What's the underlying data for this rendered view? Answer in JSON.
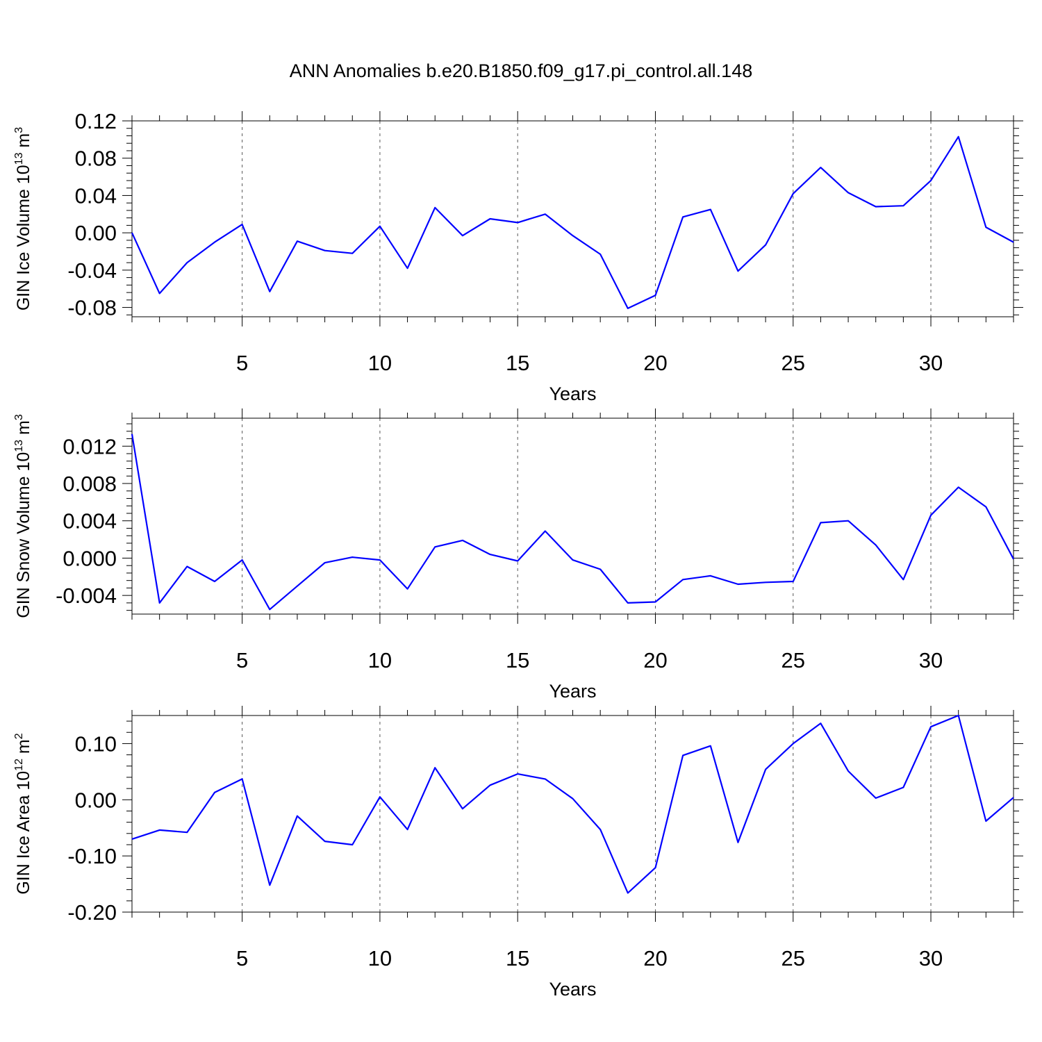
{
  "page_title": "ANN Anomalies b.e20.B1850.f09_g17.pi_control.all.148",
  "colors": {
    "line": "#0000ff",
    "axis": "#000000",
    "grid": "#555555"
  },
  "chart_data": [
    {
      "type": "line",
      "title": "ANN Anomalies b.e20.B1850.f09_g17.pi_control.all.148",
      "ylabel_parts": [
        "GIN Ice Volume 10",
        "13",
        " m",
        "3"
      ],
      "xlabel": "Years",
      "xlim": [
        1,
        33
      ],
      "ylim": [
        -0.09,
        0.12
      ],
      "xticks": [
        5,
        10,
        15,
        20,
        25,
        30
      ],
      "xtick_labels": [
        "5",
        "10",
        "15",
        "20",
        "25",
        "30"
      ],
      "yticks": [
        -0.08,
        -0.04,
        0.0,
        0.04,
        0.08,
        0.12
      ],
      "ytick_labels": [
        "-0.08",
        "-0.04",
        "0.00",
        "0.04",
        "0.08",
        "0.12"
      ],
      "grid": "vertical dashed at major x ticks",
      "x": [
        1,
        2,
        3,
        4,
        5,
        6,
        7,
        8,
        9,
        10,
        11,
        12,
        13,
        14,
        15,
        16,
        17,
        18,
        19,
        20,
        21,
        22,
        23,
        24,
        25,
        26,
        27,
        28,
        29,
        30,
        31,
        32,
        33
      ],
      "series": [
        {
          "values": [
            0.0,
            -0.065,
            -0.032,
            -0.01,
            0.009,
            -0.063,
            -0.009,
            -0.019,
            -0.022,
            0.007,
            -0.038,
            0.027,
            -0.003,
            0.015,
            0.011,
            0.02,
            -0.003,
            -0.023,
            -0.081,
            -0.067,
            0.017,
            0.025,
            -0.041,
            -0.013,
            0.042,
            0.07,
            0.043,
            0.028,
            0.029,
            0.056,
            0.103,
            0.006,
            -0.01
          ]
        }
      ]
    },
    {
      "type": "line",
      "ylabel_parts": [
        "GIN Snow Volume 10",
        "13",
        " m",
        "3"
      ],
      "xlabel": "Years",
      "xlim": [
        1,
        33
      ],
      "ylim": [
        -0.006,
        0.015
      ],
      "xticks": [
        5,
        10,
        15,
        20,
        25,
        30
      ],
      "xtick_labels": [
        "5",
        "10",
        "15",
        "20",
        "25",
        "30"
      ],
      "yticks": [
        -0.004,
        0.0,
        0.004,
        0.008,
        0.012
      ],
      "ytick_labels": [
        "-0.004",
        "0.000",
        "0.004",
        "0.008",
        "0.012"
      ],
      "grid": "vertical dashed at major x ticks",
      "x": [
        1,
        2,
        3,
        4,
        5,
        6,
        7,
        8,
        9,
        10,
        11,
        12,
        13,
        14,
        15,
        16,
        17,
        18,
        19,
        20,
        21,
        22,
        23,
        24,
        25,
        26,
        27,
        28,
        29,
        30,
        31,
        32,
        33
      ],
      "series": [
        {
          "values": [
            0.0133,
            -0.0048,
            -0.0009,
            -0.0025,
            -0.0002,
            -0.0055,
            -0.003,
            -0.0005,
            0.0001,
            -0.0002,
            -0.0033,
            0.0012,
            0.0019,
            0.0004,
            -0.0003,
            0.0029,
            -0.0002,
            -0.0012,
            -0.0048,
            -0.0047,
            -0.0023,
            -0.0019,
            -0.0028,
            -0.0026,
            -0.0025,
            0.0038,
            0.004,
            0.0014,
            -0.0023,
            0.0046,
            0.0076,
            0.0055,
            -0.0001
          ]
        }
      ]
    },
    {
      "type": "line",
      "ylabel_parts": [
        "GIN Ice Area 10",
        "12",
        " m",
        "2"
      ],
      "xlabel": "Years",
      "xlim": [
        1,
        33
      ],
      "ylim": [
        -0.2,
        0.15
      ],
      "xticks": [
        5,
        10,
        15,
        20,
        25,
        30
      ],
      "xtick_labels": [
        "5",
        "10",
        "15",
        "20",
        "25",
        "30"
      ],
      "yticks": [
        -0.2,
        -0.1,
        0.0,
        0.1
      ],
      "ytick_labels": [
        "-0.20",
        "-0.10",
        "0.00",
        "0.10"
      ],
      "grid": "vertical dashed at major x ticks",
      "x": [
        1,
        2,
        3,
        4,
        5,
        6,
        7,
        8,
        9,
        10,
        11,
        12,
        13,
        14,
        15,
        16,
        17,
        18,
        19,
        20,
        21,
        22,
        23,
        24,
        25,
        26,
        27,
        28,
        29,
        30,
        31,
        32,
        33
      ],
      "series": [
        {
          "values": [
            -0.07,
            -0.054,
            -0.058,
            0.013,
            0.037,
            -0.152,
            -0.029,
            -0.074,
            -0.08,
            0.005,
            -0.053,
            0.057,
            -0.016,
            0.026,
            0.046,
            0.037,
            0.002,
            -0.053,
            -0.166,
            -0.121,
            0.079,
            0.096,
            -0.076,
            0.054,
            0.1,
            0.136,
            0.051,
            0.003,
            0.022,
            0.13,
            0.15,
            -0.038,
            0.004
          ]
        }
      ]
    }
  ]
}
